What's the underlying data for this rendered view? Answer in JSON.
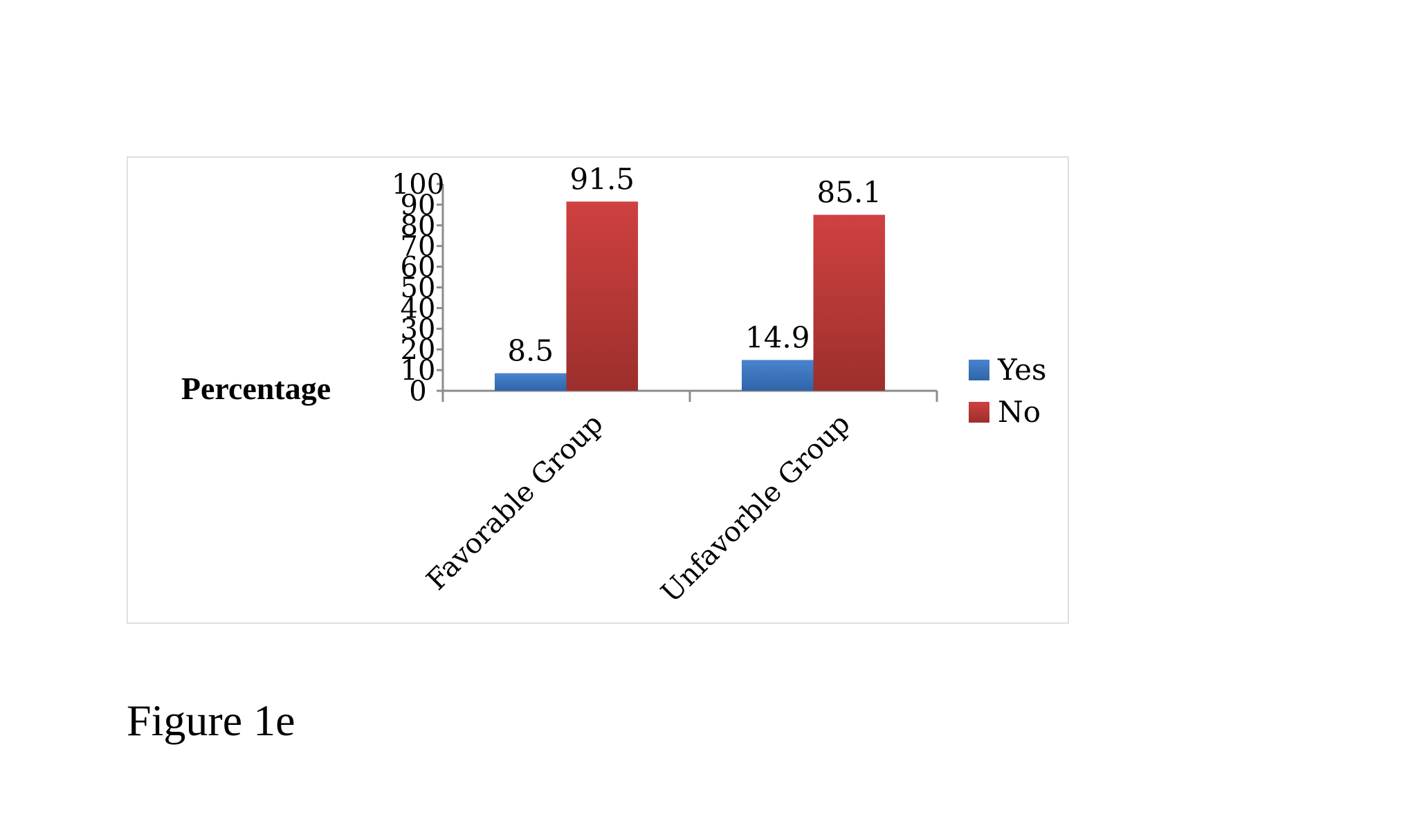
{
  "figure_caption": "Figure 1e",
  "chart_data": {
    "type": "bar",
    "title": "",
    "xlabel": "",
    "ylabel": "Percentage",
    "ylim": [
      0,
      100
    ],
    "yticks": [
      0,
      10,
      20,
      30,
      40,
      50,
      60,
      70,
      80,
      90,
      100
    ],
    "categories": [
      "Favorable Group",
      "Unfavorble Group"
    ],
    "series": [
      {
        "name": "Yes",
        "values": [
          8.5,
          14.9
        ],
        "color": "#3f76bd"
      },
      {
        "name": "No",
        "values": [
          91.5,
          85.1
        ],
        "color": "#bd3a37"
      }
    ],
    "data_labels": true,
    "grid": false,
    "legend": "right"
  }
}
